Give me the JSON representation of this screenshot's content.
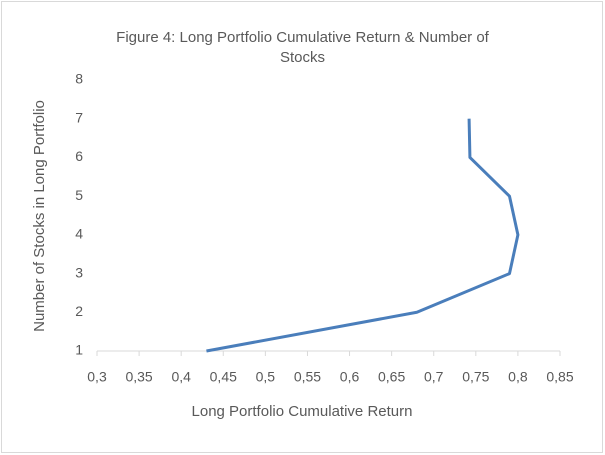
{
  "chart_data": {
    "type": "line",
    "title": "Figure 4: Long Portfolio Cumulative Return & Number of Stocks",
    "xlabel": "Long Portfolio Cumulative Return",
    "ylabel": "Number of Stocks in Long Portfolio",
    "series": [
      {
        "name": "Number of Stocks",
        "color": "#4a7ebb",
        "x": [
          0.43,
          0.68,
          0.79,
          0.8,
          0.79,
          0.743,
          0.742
        ],
        "values": [
          1,
          2,
          3,
          4,
          5,
          6,
          7
        ]
      }
    ],
    "xlim": [
      0.3,
      0.85
    ],
    "xticks": [
      {
        "value": 0.3,
        "label": "0,3"
      },
      {
        "value": 0.35,
        "label": "0,35"
      },
      {
        "value": 0.4,
        "label": "0,4"
      },
      {
        "value": 0.45,
        "label": "0,45"
      },
      {
        "value": 0.5,
        "label": "0,5"
      },
      {
        "value": 0.55,
        "label": "0,55"
      },
      {
        "value": 0.6,
        "label": "0,6"
      },
      {
        "value": 0.65,
        "label": "0,65"
      },
      {
        "value": 0.7,
        "label": "0,7"
      },
      {
        "value": 0.75,
        "label": "0,75"
      },
      {
        "value": 0.8,
        "label": "0,8"
      },
      {
        "value": 0.85,
        "label": "0,85"
      }
    ],
    "ylim": [
      1,
      8
    ],
    "yticks": [
      1,
      2,
      3,
      4,
      5,
      6,
      7,
      8
    ],
    "grid": false
  }
}
